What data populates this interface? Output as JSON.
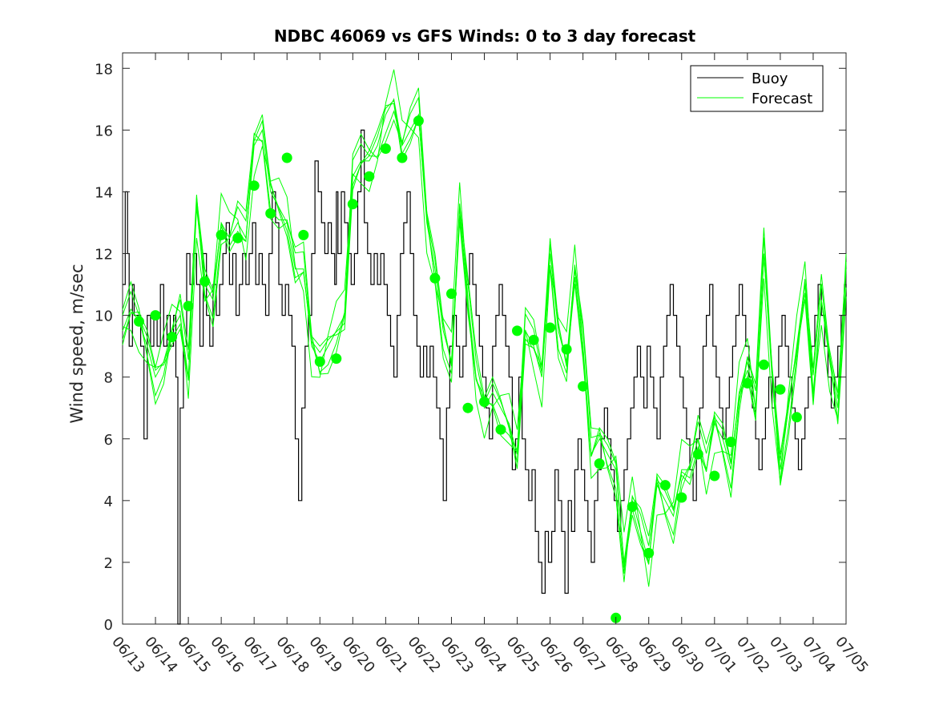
{
  "chart_data": {
    "type": "line",
    "title": "NDBC 46069 vs GFS Winds: 0 to 3 day forecast",
    "xlabel": "",
    "ylabel": "Wind speed, m/sec",
    "ylim": [
      0,
      18.5
    ],
    "yticks": [
      "0",
      "2",
      "4",
      "6",
      "8",
      "10",
      "12",
      "14",
      "16",
      "18"
    ],
    "xticks": [
      "06/13",
      "06/14",
      "06/15",
      "06/16",
      "06/17",
      "06/18",
      "06/19",
      "06/20",
      "06/21",
      "06/22",
      "06/23",
      "06/24",
      "06/25",
      "06/26",
      "06/27",
      "06/28",
      "06/29",
      "06/30",
      "07/01",
      "07/02",
      "07/03",
      "07/04",
      "07/05"
    ],
    "grid": false,
    "legend": {
      "placement": "top-right",
      "entries": [
        "Buoy",
        "Forecast"
      ]
    },
    "colors": {
      "buoy": "#000000",
      "forecast": "#00ff00"
    },
    "buoy": {
      "name": "Buoy",
      "days": [
        0,
        0.08,
        0.15,
        0.2,
        0.3,
        0.35,
        0.45,
        0.55,
        0.65,
        0.75,
        0.85,
        0.95,
        1.05,
        1.15,
        1.25,
        1.35,
        1.45,
        1.55,
        1.62,
        1.68,
        1.75,
        1.85,
        1.95,
        2.05,
        2.15,
        2.25,
        2.35,
        2.45,
        2.55,
        2.65,
        2.75,
        2.85,
        2.95,
        3.05,
        3.15,
        3.25,
        3.35,
        3.45,
        3.55,
        3.65,
        3.75,
        3.85,
        3.95,
        4.05,
        4.15,
        4.25,
        4.35,
        4.45,
        4.55,
        4.65,
        4.75,
        4.85,
        4.95,
        5.05,
        5.15,
        5.25,
        5.35,
        5.45,
        5.55,
        5.65,
        5.75,
        5.85,
        5.95,
        6.05,
        6.15,
        6.25,
        6.35,
        6.45,
        6.5,
        6.55,
        6.65,
        6.75,
        6.85,
        6.95,
        7.05,
        7.15,
        7.25,
        7.35,
        7.45,
        7.55,
        7.65,
        7.75,
        7.85,
        7.95,
        8.05,
        8.15,
        8.25,
        8.35,
        8.45,
        8.55,
        8.65,
        8.75,
        8.85,
        8.95,
        9.05,
        9.15,
        9.25,
        9.35,
        9.45,
        9.55,
        9.65,
        9.75,
        9.85,
        9.95,
        10.05,
        10.15,
        10.25,
        10.35,
        10.45,
        10.55,
        10.65,
        10.75,
        10.85,
        10.95,
        11.05,
        11.15,
        11.25,
        11.35,
        11.45,
        11.55,
        11.65,
        11.75,
        11.85,
        11.95,
        12.05,
        12.15,
        12.25,
        12.35,
        12.45,
        12.55,
        12.65,
        12.75,
        12.85,
        12.95,
        13.05,
        13.15,
        13.25,
        13.35,
        13.45,
        13.55,
        13.65,
        13.75,
        13.85,
        13.95,
        14.05,
        14.15,
        14.25,
        14.35,
        14.45,
        14.55,
        14.65,
        14.75,
        14.85,
        14.95,
        15.05,
        15.15,
        15.25,
        15.35,
        15.45,
        15.55,
        15.65,
        15.75,
        15.85,
        15.95,
        16.05,
        16.15,
        16.25,
        16.35,
        16.45,
        16.55,
        16.65,
        16.75,
        16.85,
        16.95,
        17.05,
        17.15,
        17.25,
        17.35,
        17.45,
        17.55,
        17.65,
        17.75,
        17.85,
        17.95,
        18.05,
        18.15,
        18.25,
        18.35,
        18.45,
        18.55,
        18.65,
        18.75,
        18.85,
        18.95,
        19.05,
        19.15,
        19.25,
        19.35,
        19.45,
        19.55,
        19.65,
        19.75,
        19.85,
        19.95,
        20.05,
        20.15,
        20.25,
        20.35,
        20.45,
        20.55,
        20.65,
        20.75,
        20.85,
        20.95,
        21.05,
        21.15,
        21.25,
        21.35,
        21.45,
        21.55,
        21.65,
        21.75,
        21.85,
        21.95,
        22.0
      ],
      "speed": [
        11,
        14,
        12,
        9,
        11,
        10,
        10,
        9,
        6,
        10,
        9,
        10,
        9,
        11,
        9,
        10,
        9,
        10,
        8,
        0,
        7,
        9,
        12,
        11,
        12,
        11,
        9,
        12,
        10,
        9,
        11,
        10,
        11,
        12,
        13,
        11,
        12,
        10,
        11,
        12,
        11,
        12,
        13,
        11,
        12,
        11,
        10,
        12,
        14,
        13,
        11,
        10,
        11,
        10,
        9,
        6,
        4,
        7,
        9,
        10,
        12,
        15,
        14,
        13,
        12,
        13,
        12,
        11,
        14,
        12,
        14,
        13,
        12,
        11,
        12,
        14,
        16,
        13,
        12,
        11,
        12,
        11,
        12,
        11,
        10,
        9,
        8,
        10,
        12,
        13,
        14,
        12,
        10,
        9,
        8,
        9,
        8,
        9,
        8,
        7,
        6,
        4,
        7,
        9,
        10,
        9,
        8,
        9,
        11,
        12,
        11,
        10,
        9,
        8,
        7,
        6,
        9,
        10,
        11,
        10,
        9,
        8,
        5,
        6,
        8,
        6,
        5,
        4,
        5,
        3,
        2,
        1,
        3,
        2,
        3,
        5,
        4,
        3,
        1,
        4,
        3,
        5,
        6,
        5,
        4,
        3,
        2,
        4,
        5,
        6,
        7,
        6,
        5,
        4,
        3,
        4,
        5,
        6,
        7,
        8,
        9,
        8,
        7,
        9,
        8,
        7,
        6,
        8,
        9,
        10,
        11,
        10,
        9,
        8,
        7,
        6,
        5,
        4,
        6,
        7,
        9,
        10,
        11,
        9,
        8,
        7,
        6,
        7,
        8,
        9,
        10,
        11,
        10,
        9,
        8,
        7,
        6,
        5,
        6,
        7,
        8,
        7,
        8,
        9,
        10,
        9,
        8,
        7,
        6,
        5,
        6,
        7,
        8,
        9,
        10,
        11,
        10,
        9,
        8,
        7,
        8,
        9,
        10,
        11,
        10,
        11,
        12
      ],
      "forecast_markers": {
        "days": [
          0.5,
          1,
          1.5,
          2,
          2.5,
          3,
          3.5,
          4,
          4.5,
          5,
          5.5,
          6,
          6.5,
          7,
          7.5,
          8,
          8.5,
          9,
          9.5,
          10,
          10.5,
          11,
          11.5,
          12,
          12.5,
          13,
          13.5,
          14,
          14.5,
          15,
          15.5,
          16,
          16.5,
          17,
          17.5,
          18,
          18.5,
          19,
          19.5,
          20,
          20.5
        ],
        "speed": [
          9.8,
          10.0,
          9.3,
          10.3,
          11.1,
          12.6,
          12.5,
          14.2,
          13.3,
          15.1,
          12.6,
          8.5,
          8.6,
          13.6,
          14.5,
          15.4,
          15.1,
          16.3,
          11.2,
          10.7,
          7.0,
          7.2,
          6.3,
          9.5,
          9.2,
          9.6,
          8.9,
          7.7,
          5.2,
          0.2,
          3.8,
          2.3,
          4.5,
          4.1,
          5.5,
          4.8,
          5.9,
          7.8,
          8.4,
          7.6,
          6.7
        ]
      }
    },
    "forecast": {
      "name": "Forecast",
      "days": [
        0,
        0.25,
        0.5,
        0.75,
        1,
        1.25,
        1.5,
        1.75,
        2,
        2.25,
        2.5,
        2.75,
        3,
        3.25,
        3.5,
        3.75,
        4,
        4.25,
        4.5,
        4.75,
        5,
        5.25,
        5.5,
        5.75,
        6,
        6.25,
        6.5,
        6.75,
        7,
        7.25,
        7.5,
        7.75,
        8,
        8.25,
        8.5,
        8.75,
        9,
        9.25,
        9.5,
        9.75,
        10,
        10.25,
        10.5,
        10.75,
        11,
        11.25,
        11.5,
        11.75,
        12,
        12.25,
        12.5,
        12.75,
        13,
        13.25,
        13.5,
        13.75,
        14,
        14.25,
        14.5,
        14.75,
        15,
        15.25,
        15.5,
        15.75,
        16,
        16.25,
        16.5,
        16.75,
        17,
        17.25,
        17.5,
        17.75,
        18,
        18.25,
        18.5,
        18.75,
        19,
        19.25,
        19.5,
        19.75,
        20,
        20.25,
        20.5,
        20.75,
        21,
        21.25,
        21.5,
        21.75,
        22
      ],
      "speed": [
        9.5,
        10.2,
        9.8,
        9.0,
        8.0,
        8.5,
        9.5,
        10.0,
        8.0,
        13.5,
        11.0,
        10.5,
        13.0,
        12.5,
        13.0,
        12.5,
        15.5,
        16.0,
        14.0,
        13.5,
        13.0,
        11.5,
        11.5,
        9.0,
        8.5,
        9.0,
        9.5,
        10.0,
        14.5,
        15.0,
        15.0,
        15.5,
        16.5,
        17.0,
        15.5,
        16.0,
        16.5,
        13.0,
        11.5,
        9.5,
        8.5,
        13.5,
        10.5,
        8.0,
        7.0,
        7.5,
        7.0,
        6.5,
        5.5,
        9.5,
        9.0,
        8.0,
        12.0,
        9.5,
        8.5,
        11.5,
        9.0,
        5.5,
        6.0,
        5.5,
        5.0,
        2.0,
        4.0,
        3.0,
        2.0,
        4.5,
        4.0,
        3.5,
        5.0,
        5.0,
        6.0,
        5.0,
        6.5,
        6.0,
        5.0,
        7.5,
        8.5,
        7.0,
        12.0,
        8.0,
        5.0,
        7.0,
        9.0,
        11.0,
        7.5,
        10.5,
        8.5,
        7.0,
        11.5
      ]
    }
  }
}
